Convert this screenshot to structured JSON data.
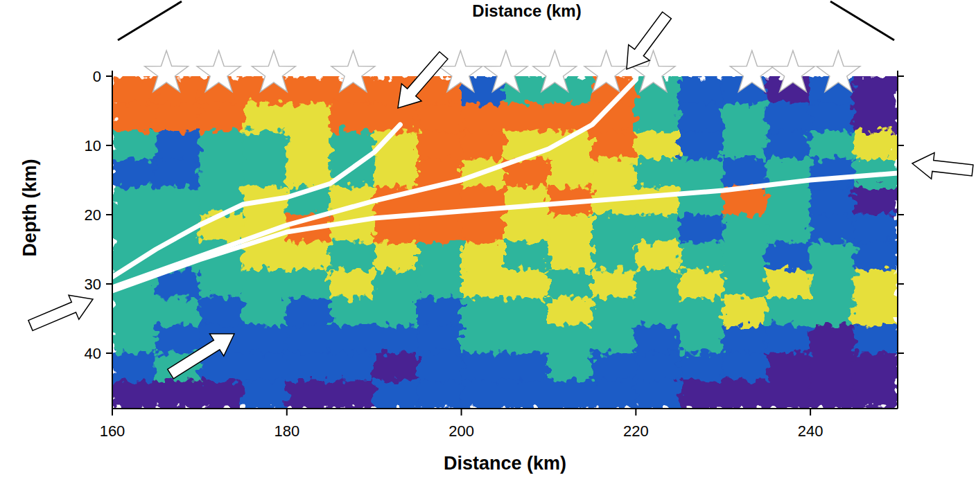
{
  "chart_data": {
    "type": "heatmap",
    "top_label": "Distance (km)",
    "x_label": "Distance (km)",
    "y_label": "Depth (km)",
    "xlim": [
      160,
      250
    ],
    "xticks": [
      160,
      180,
      200,
      220,
      240
    ],
    "ylim": [
      0,
      48
    ],
    "yticks": [
      0,
      10,
      20,
      30,
      40
    ],
    "cell_x_edges": [
      160,
      165,
      170,
      175,
      180,
      185,
      190,
      195,
      200,
      205,
      210,
      215,
      220,
      225,
      230,
      235,
      240,
      245,
      250
    ],
    "cell_y_edges": [
      0,
      4,
      8,
      12,
      16,
      20,
      24,
      28,
      32,
      36,
      40,
      44,
      48
    ],
    "colors": [
      "#4a2392",
      "#1e5bc6",
      "#2fb59c",
      "#e6df3a",
      "#f26d21"
    ],
    "cells": [
      [
        5,
        5,
        5,
        5,
        5,
        5,
        5,
        5,
        2,
        3,
        3,
        5,
        3,
        2,
        2,
        1,
        2,
        1
      ],
      [
        5,
        5,
        5,
        4,
        4,
        5,
        5,
        5,
        5,
        5,
        5,
        5,
        3,
        2,
        3,
        2,
        2,
        1
      ],
      [
        3,
        2,
        3,
        3,
        4,
        3,
        4,
        5,
        5,
        4,
        4,
        5,
        4,
        2,
        3,
        2,
        3,
        4
      ],
      [
        2,
        2,
        3,
        3,
        4,
        3,
        4,
        5,
        4,
        5,
        4,
        4,
        3,
        3,
        2,
        3,
        2,
        3
      ],
      [
        3,
        3,
        3,
        4,
        3,
        4,
        5,
        5,
        5,
        4,
        5,
        4,
        4,
        3,
        5,
        3,
        2,
        1
      ],
      [
        3,
        3,
        4,
        4,
        5,
        4,
        5,
        5,
        5,
        4,
        4,
        3,
        3,
        2,
        3,
        3,
        2,
        2
      ],
      [
        3,
        3,
        3,
        4,
        4,
        3,
        4,
        3,
        4,
        3,
        4,
        3,
        4,
        3,
        3,
        2,
        3,
        2
      ],
      [
        3,
        2,
        3,
        3,
        3,
        4,
        3,
        3,
        4,
        4,
        3,
        4,
        3,
        4,
        3,
        4,
        3,
        4
      ],
      [
        3,
        3,
        2,
        3,
        2,
        3,
        3,
        2,
        3,
        3,
        4,
        3,
        3,
        3,
        4,
        3,
        3,
        4
      ],
      [
        3,
        2,
        2,
        2,
        2,
        2,
        2,
        2,
        3,
        3,
        3,
        3,
        2,
        3,
        2,
        2,
        1,
        2
      ],
      [
        2,
        3,
        2,
        2,
        2,
        2,
        1,
        2,
        2,
        2,
        3,
        2,
        2,
        2,
        2,
        1,
        1,
        1
      ],
      [
        1,
        1,
        1,
        2,
        1,
        1,
        2,
        2,
        2,
        2,
        2,
        2,
        2,
        1,
        1,
        1,
        1,
        1
      ]
    ],
    "series": [
      {
        "type": "line",
        "color": "#ffffff",
        "x": [
          160,
          165,
          170,
          175,
          180,
          185,
          190,
          193
        ],
        "values": [
          29,
          25,
          21.5,
          18.5,
          17.5,
          15.5,
          11,
          7
        ]
      },
      {
        "type": "line",
        "color": "#ffffff",
        "x": [
          160,
          170,
          180,
          190,
          200,
          210,
          215,
          220
        ],
        "values": [
          30.5,
          26,
          21.5,
          18,
          15,
          10.5,
          7,
          0.5
        ]
      },
      {
        "type": "line",
        "color": "#ffffff",
        "x": [
          160,
          170,
          180,
          190,
          200,
          210,
          220,
          230,
          240,
          250
        ],
        "values": [
          31,
          26.5,
          22.5,
          20.5,
          19.5,
          18.5,
          17.5,
          16.5,
          15,
          14
        ]
      },
      {
        "type": "scatter",
        "marker": "star",
        "color": "#ffffff",
        "x": [
          166.2,
          172.2,
          178.5,
          187.6,
          199.9,
          205.1,
          210.7,
          216.6,
          222,
          233.3,
          238,
          243.2
        ],
        "values": [
          0,
          0,
          0,
          0,
          0,
          0,
          0,
          0,
          0,
          0,
          0,
          0
        ]
      }
    ]
  }
}
